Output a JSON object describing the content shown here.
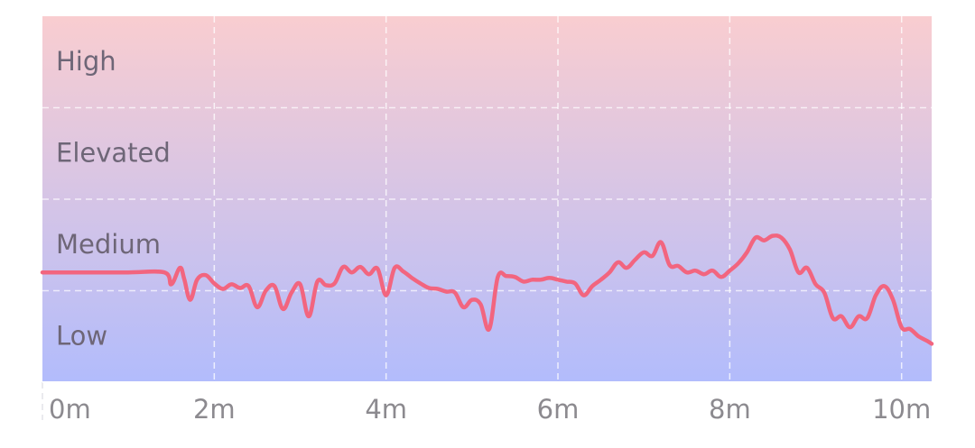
{
  "chart_data": {
    "type": "line",
    "title": "",
    "xlabel": "",
    "ylabel": "",
    "xlim": [
      0,
      10.35
    ],
    "ylim": [
      0,
      4
    ],
    "x_ticks": [
      {
        "value": 0,
        "label": "0m"
      },
      {
        "value": 2,
        "label": "2m"
      },
      {
        "value": 4,
        "label": "4m"
      },
      {
        "value": 6,
        "label": "6m"
      },
      {
        "value": 8,
        "label": "8m"
      },
      {
        "value": 10,
        "label": "10m"
      }
    ],
    "bands": [
      {
        "label": "Low",
        "from": 0,
        "to": 1
      },
      {
        "label": "Medium",
        "from": 1,
        "to": 2
      },
      {
        "label": "Elevated",
        "from": 2,
        "to": 3
      },
      {
        "label": "High",
        "from": 3,
        "to": 4
      }
    ],
    "grid": true,
    "background_gradient": {
      "top": "#f9cdd0",
      "bottom": "#b2bcfc"
    },
    "line_color": "#f2657f",
    "series": [
      {
        "x": [
          0,
          0.5,
          1.0,
          1.42,
          1.5,
          1.6,
          1.65,
          1.72,
          1.8,
          1.9,
          2.0,
          2.1,
          2.2,
          2.3,
          2.4,
          2.5,
          2.6,
          2.7,
          2.8,
          2.9,
          3.0,
          3.1,
          3.2,
          3.3,
          3.4,
          3.5,
          3.6,
          3.7,
          3.8,
          3.9,
          4.0,
          4.1,
          4.2,
          4.3,
          4.4,
          4.5,
          4.6,
          4.7,
          4.8,
          4.9,
          5.0,
          5.1,
          5.2,
          5.3,
          5.4,
          5.5,
          5.6,
          5.7,
          5.8,
          5.9,
          6.0,
          6.1,
          6.2,
          6.3,
          6.4,
          6.5,
          6.6,
          6.7,
          6.8,
          6.9,
          7.0,
          7.1,
          7.2,
          7.3,
          7.4,
          7.5,
          7.6,
          7.7,
          7.8,
          7.9,
          8.0,
          8.1,
          8.2,
          8.3,
          8.4,
          8.5,
          8.6,
          8.7,
          8.8,
          8.9,
          9.0,
          9.1,
          9.2,
          9.3,
          9.4,
          9.5,
          9.6,
          9.7,
          9.8,
          9.9,
          10.0,
          10.1,
          10.2,
          10.3,
          10.35
        ],
        "y": [
          1.2,
          1.2,
          1.2,
          1.2,
          1.07,
          1.25,
          1.13,
          0.9,
          1.12,
          1.17,
          1.08,
          1.02,
          1.07,
          1.03,
          1.05,
          0.82,
          1.0,
          1.05,
          0.8,
          0.98,
          1.07,
          0.72,
          1.1,
          1.06,
          1.08,
          1.26,
          1.2,
          1.26,
          1.18,
          1.24,
          0.95,
          1.25,
          1.21,
          1.14,
          1.08,
          1.03,
          1.02,
          0.99,
          0.98,
          0.82,
          0.9,
          0.85,
          0.58,
          1.15,
          1.16,
          1.15,
          1.1,
          1.12,
          1.12,
          1.14,
          1.12,
          1.1,
          1.08,
          0.95,
          1.05,
          1.12,
          1.2,
          1.31,
          1.25,
          1.34,
          1.42,
          1.38,
          1.53,
          1.28,
          1.27,
          1.2,
          1.22,
          1.18,
          1.22,
          1.15,
          1.22,
          1.3,
          1.42,
          1.58,
          1.55,
          1.6,
          1.58,
          1.45,
          1.2,
          1.25,
          1.07,
          0.98,
          0.7,
          0.72,
          0.6,
          0.72,
          0.7,
          0.95,
          1.05,
          0.9,
          0.6,
          0.58,
          0.5,
          0.45,
          0.42
        ]
      }
    ]
  }
}
